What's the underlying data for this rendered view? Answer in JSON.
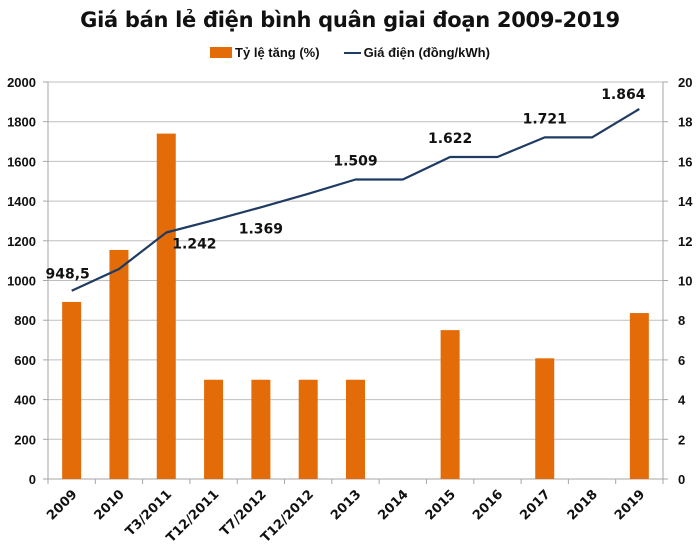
{
  "chart_data": {
    "type": "bar+line",
    "title": "Giá bán lẻ điện bình quân giai đoạn 2009-2019",
    "categories": [
      "2009",
      "2010",
      "T3/2011",
      "T12/2011",
      "T7/2012",
      "T12/2012",
      "2013",
      "2014",
      "2015",
      "2016",
      "2017",
      "2018",
      "2019"
    ],
    "series": [
      {
        "name": "Tỷ lệ tăng (%)",
        "type": "bar",
        "axis": "right",
        "color": "#E36C09",
        "values": [
          8.92,
          11.54,
          17.4,
          5,
          5,
          5,
          5,
          0,
          7.5,
          0,
          6.08,
          0,
          8.36
        ]
      },
      {
        "name": "Giá điện (đồng/kWh)",
        "type": "line",
        "axis": "left",
        "color": "#1F3B63",
        "values": [
          948.5,
          1058,
          1242,
          1304,
          1369,
          1437,
          1509,
          1509,
          1622,
          1622,
          1721,
          1721,
          1864
        ]
      }
    ],
    "data_labels": [
      {
        "category": "2009",
        "text": "948,5"
      },
      {
        "category": "T3/2011",
        "text": "1.242"
      },
      {
        "category": "T7/2012",
        "text": "1.369"
      },
      {
        "category": "2013",
        "text": "1.509"
      },
      {
        "category": "2015",
        "text": "1.622"
      },
      {
        "category": "2017",
        "text": "1.721"
      },
      {
        "category": "2019",
        "text": "1.864"
      }
    ],
    "y_left": {
      "min": 0,
      "max": 2000,
      "step": 200,
      "ticks": [
        "0",
        "200",
        "400",
        "600",
        "800",
        "1000",
        "1200",
        "1400",
        "1600",
        "1800",
        "2000"
      ]
    },
    "y_right": {
      "min": 0,
      "max": 20,
      "step": 2,
      "ticks": [
        "0",
        "2",
        "4",
        "6",
        "8",
        "10",
        "12",
        "14",
        "16",
        "18",
        "20"
      ]
    },
    "grid": true,
    "legend_position": "top-center",
    "xlabel": "",
    "ylabel": ""
  }
}
